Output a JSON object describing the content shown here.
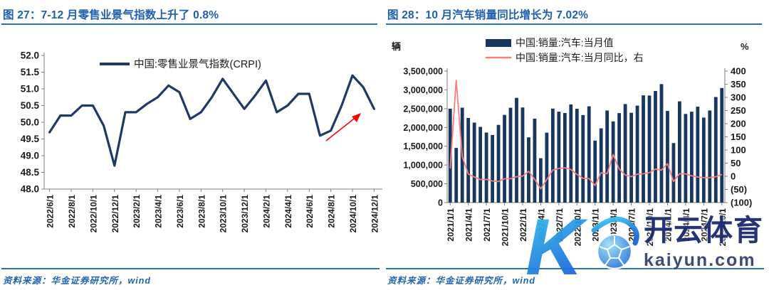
{
  "figures": [
    {
      "title": "图 27：7-12 月零售业景气指数上升了 0.8%",
      "source_note": "资料来源：华金证券研究所，wind",
      "chart_data": {
        "type": "line",
        "legend": [
          "中国:零售业景气指数(CRPI)"
        ],
        "line_color": "#1F3864",
        "ylim": [
          48.0,
          52.0
        ],
        "ytick_step": 0.5,
        "x_ticks_every": 2,
        "grid": false,
        "annotation": {
          "type": "arrow",
          "color": "#FF0000",
          "note": "points to 2024/12 value"
        },
        "x": [
          "2022/6/1",
          "2022/7/1",
          "2022/8/1",
          "2022/9/1",
          "2022/10/1",
          "2022/11/1",
          "2022/12/1",
          "2023/1/1",
          "2023/2/1",
          "2023/3/1",
          "2023/4/1",
          "2023/5/1",
          "2023/6/1",
          "2023/7/1",
          "2023/8/1",
          "2023/9/1",
          "2023/10/1",
          "2023/11/1",
          "2023/12/1",
          "2024/1/1",
          "2024/2/1",
          "2024/3/1",
          "2024/4/1",
          "2024/5/1",
          "2024/6/1",
          "2024/7/1",
          "2024/8/1",
          "2024/9/1",
          "2024/10/1",
          "2024/11/1",
          "2024/12/1"
        ],
        "values": [
          49.7,
          50.2,
          50.2,
          50.5,
          50.5,
          49.9,
          48.7,
          50.3,
          50.3,
          50.55,
          50.75,
          51.1,
          50.9,
          50.1,
          50.3,
          50.75,
          51.3,
          50.85,
          50.4,
          50.8,
          51.25,
          50.3,
          50.5,
          50.85,
          50.85,
          49.6,
          49.75,
          50.5,
          51.4,
          51.05,
          50.4
        ]
      }
    },
    {
      "title": "图 28：10 月汽车销量同比增长为 7.02%",
      "source_note": "资料来源：华金证券研究所，wind",
      "chart_data": {
        "type": "combo",
        "left_axis": {
          "unit": "辆",
          "min": 0,
          "max": 3500000,
          "step": 500000
        },
        "right_axis": {
          "unit": "%",
          "min": -100,
          "max": 400,
          "step": 50,
          "negative_format": "parentheses"
        },
        "x_ticks_every": 3,
        "grid": false,
        "categories": [
          "2021/1/1",
          "2021/2/1",
          "2021/3/1",
          "2021/4/1",
          "2021/5/1",
          "2021/6/1",
          "2021/7/1",
          "2021/8/1",
          "2021/9/1",
          "2021/10/1",
          "2021/11/1",
          "2021/12/1",
          "2022/1/1",
          "2022/2/1",
          "2022/3/1",
          "2022/4/1",
          "2022/5/1",
          "2022/6/1",
          "2022/7/1",
          "2022/8/1",
          "2022/9/1",
          "2022/10/1",
          "2022/11/1",
          "2022/12/1",
          "2023/1/1",
          "2023/2/1",
          "2023/3/1",
          "2023/4/1",
          "2023/5/1",
          "2023/6/1",
          "2023/7/1",
          "2023/8/1",
          "2023/9/1",
          "2023/10/1",
          "2023/11/1",
          "2023/12/1",
          "2024/1/1",
          "2024/2/1",
          "2024/3/1",
          "2024/4/1",
          "2024/5/1",
          "2024/6/1",
          "2024/7/1",
          "2024/8/1",
          "2024/9/1",
          "2024/10/1"
        ],
        "bar_series": {
          "name": "中国:销量:汽车:当月值",
          "color": "#17375E",
          "values": [
            2500000,
            1455000,
            2526000,
            2252000,
            2128000,
            2015000,
            1864000,
            1799000,
            2067000,
            2333000,
            2523000,
            2786000,
            2531000,
            1737000,
            2234000,
            1181000,
            1862000,
            2502000,
            2420000,
            2383000,
            2610000,
            2498000,
            2328000,
            2561000,
            1649000,
            1976000,
            2452000,
            2161000,
            2382000,
            2622000,
            2389000,
            2580000,
            2854000,
            2850000,
            2970000,
            3153000,
            2439000,
            1584000,
            2694000,
            2359000,
            2417000,
            2552000,
            2262000,
            2452000,
            2809000,
            3050000
          ]
        },
        "line_series": {
          "name": "中国:销量:汽车:当月同比，右",
          "color": "#FA7D7D",
          "values": [
            29.5,
            364.8,
            74.9,
            8.6,
            -3.1,
            -12.4,
            -11.9,
            -17.8,
            -19.6,
            -9.4,
            -9.1,
            -1.6,
            0.9,
            18.7,
            -11.7,
            -47.6,
            -12.6,
            23.8,
            29.7,
            32.1,
            25.7,
            6.9,
            -7.9,
            -8.4,
            -35.0,
            13.5,
            9.7,
            82.7,
            27.9,
            4.8,
            -1.4,
            8.2,
            9.5,
            13.8,
            27.4,
            23.5,
            47.9,
            -19.9,
            9.9,
            9.3,
            1.5,
            -2.7,
            -5.2,
            -5.0,
            -1.7,
            7.02
          ]
        }
      }
    }
  ],
  "watermark": {
    "logo_letter": "K",
    "brand": "开云体育",
    "domain": "kaiyun.com",
    "gradient_top": "#3BCBEF",
    "gradient_bottom": "#1B66D9"
  },
  "colors": {
    "title_blue": "#1F5FAD",
    "rule_blue": "#2E74B5",
    "axis_gray": "#7F7F7F",
    "label_black": "#1A1A1A"
  }
}
